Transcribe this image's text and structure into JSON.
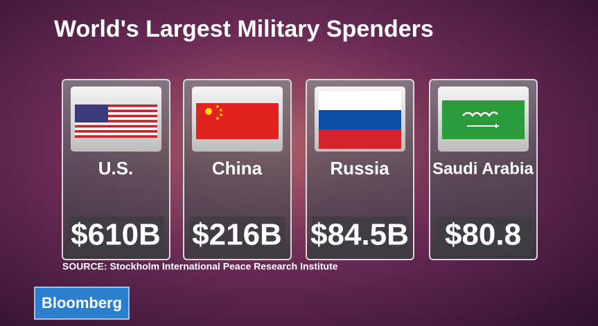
{
  "title": "World's Largest Military Spenders",
  "cards": [
    {
      "country": "U.S.",
      "value": "$610B"
    },
    {
      "country": "China",
      "value": "$216B"
    },
    {
      "country": "Russia",
      "value": "$84.5B"
    },
    {
      "country": "Saudi Arabia",
      "value": "$80.8"
    }
  ],
  "source": "SOURCE:  Stockholm International Peace Research Institute",
  "logo": "Bloomberg"
}
